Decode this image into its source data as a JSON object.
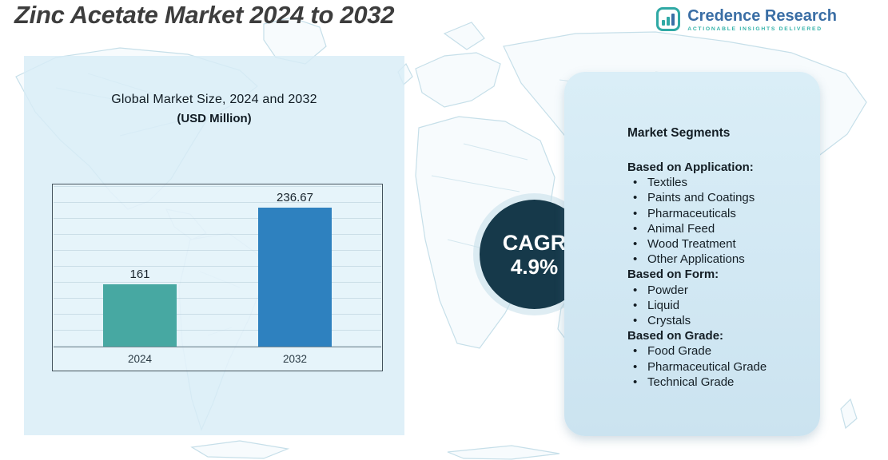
{
  "page": {
    "title": "Zinc Acetate Market 2024 to 2032"
  },
  "logo": {
    "name": "Credence Research",
    "tagline": "Actionable Insights Delivered",
    "accent_teal": "#2fa9a5",
    "accent_blue": "#3a6ea5"
  },
  "left_panel": {
    "heading_line1": "Global Market Size, 2024 and 2032",
    "heading_line2": "(USD Million)"
  },
  "chart_data": {
    "type": "bar",
    "title": "Global Market Size, 2024 and 2032 (USD Million)",
    "categories": [
      "2024",
      "2032"
    ],
    "values": [
      161,
      236.67
    ],
    "value_labels": [
      "161",
      "236.67"
    ],
    "bar_colors": [
      "#47a8a2",
      "#2e81bf"
    ],
    "xlabel": "",
    "ylabel": "USD Million",
    "ylim": [
      100,
      260
    ],
    "grid": true,
    "legend": false
  },
  "cagr": {
    "label": "CAGR",
    "value": "4.9%"
  },
  "segments": {
    "title": "Market Segments",
    "groups": [
      {
        "heading": "Based on Application:",
        "items": [
          "Textiles",
          "Paints and Coatings",
          "Pharmaceuticals",
          "Animal Feed",
          "Wood Treatment",
          "Other Applications"
        ]
      },
      {
        "heading": "Based on Form:",
        "items": [
          "Powder",
          "Liquid",
          "Crystals"
        ]
      },
      {
        "heading": "Based on Grade:",
        "items": [
          "Food Grade",
          "Pharmaceutical Grade",
          "Technical Grade"
        ]
      }
    ]
  }
}
